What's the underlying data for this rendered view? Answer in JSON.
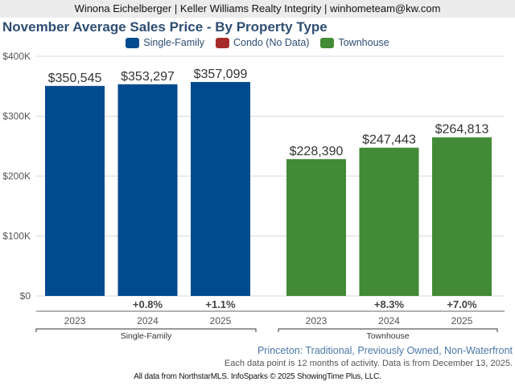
{
  "header": {
    "agent_line": "Winona Eichelberger | Keller Williams Realty Integrity | winhometeam@kw.com"
  },
  "chart_data": {
    "type": "bar",
    "title": "November Average Sales Price - By Property Type",
    "xlabel": "",
    "ylabel": "",
    "ylim": [
      0,
      400000
    ],
    "yticks": [
      0,
      100000,
      200000,
      300000,
      400000
    ],
    "ytick_labels": [
      "$0",
      "$100K",
      "$200K",
      "$300K",
      "$400K"
    ],
    "grid": true,
    "legend_position": "top-center",
    "legend": [
      {
        "name": "Single-Family",
        "color": "#004b8d"
      },
      {
        "name": "Condo (No Data)",
        "color": "#a62a2a"
      },
      {
        "name": "Townhouse",
        "color": "#438a36"
      }
    ],
    "groups": [
      {
        "name": "Single-Family",
        "color": "#004b8d",
        "categories": [
          "2023",
          "2024",
          "2025"
        ],
        "values": [
          350545,
          353297,
          357099
        ],
        "value_labels": [
          "$350,545",
          "$353,297",
          "$357,099"
        ],
        "changes": [
          "",
          "+0.8%",
          "+1.1%"
        ]
      },
      {
        "name": "Townhouse",
        "color": "#438a36",
        "categories": [
          "2023",
          "2024",
          "2025"
        ],
        "values": [
          228390,
          247443,
          264813
        ],
        "value_labels": [
          "$228,390",
          "$247,443",
          "$264,813"
        ],
        "changes": [
          "",
          "+8.3%",
          "+7.0%"
        ]
      }
    ]
  },
  "footer": {
    "filter_line": "Princeton: Traditional, Previously Owned, Non-Waterfront",
    "note_line": "Each data point is 12 months of activity. Data is from December 13, 2025.",
    "credit_line": "All data from NorthstarMLS. InfoSparks © 2025 ShowingTime Plus, LLC."
  }
}
